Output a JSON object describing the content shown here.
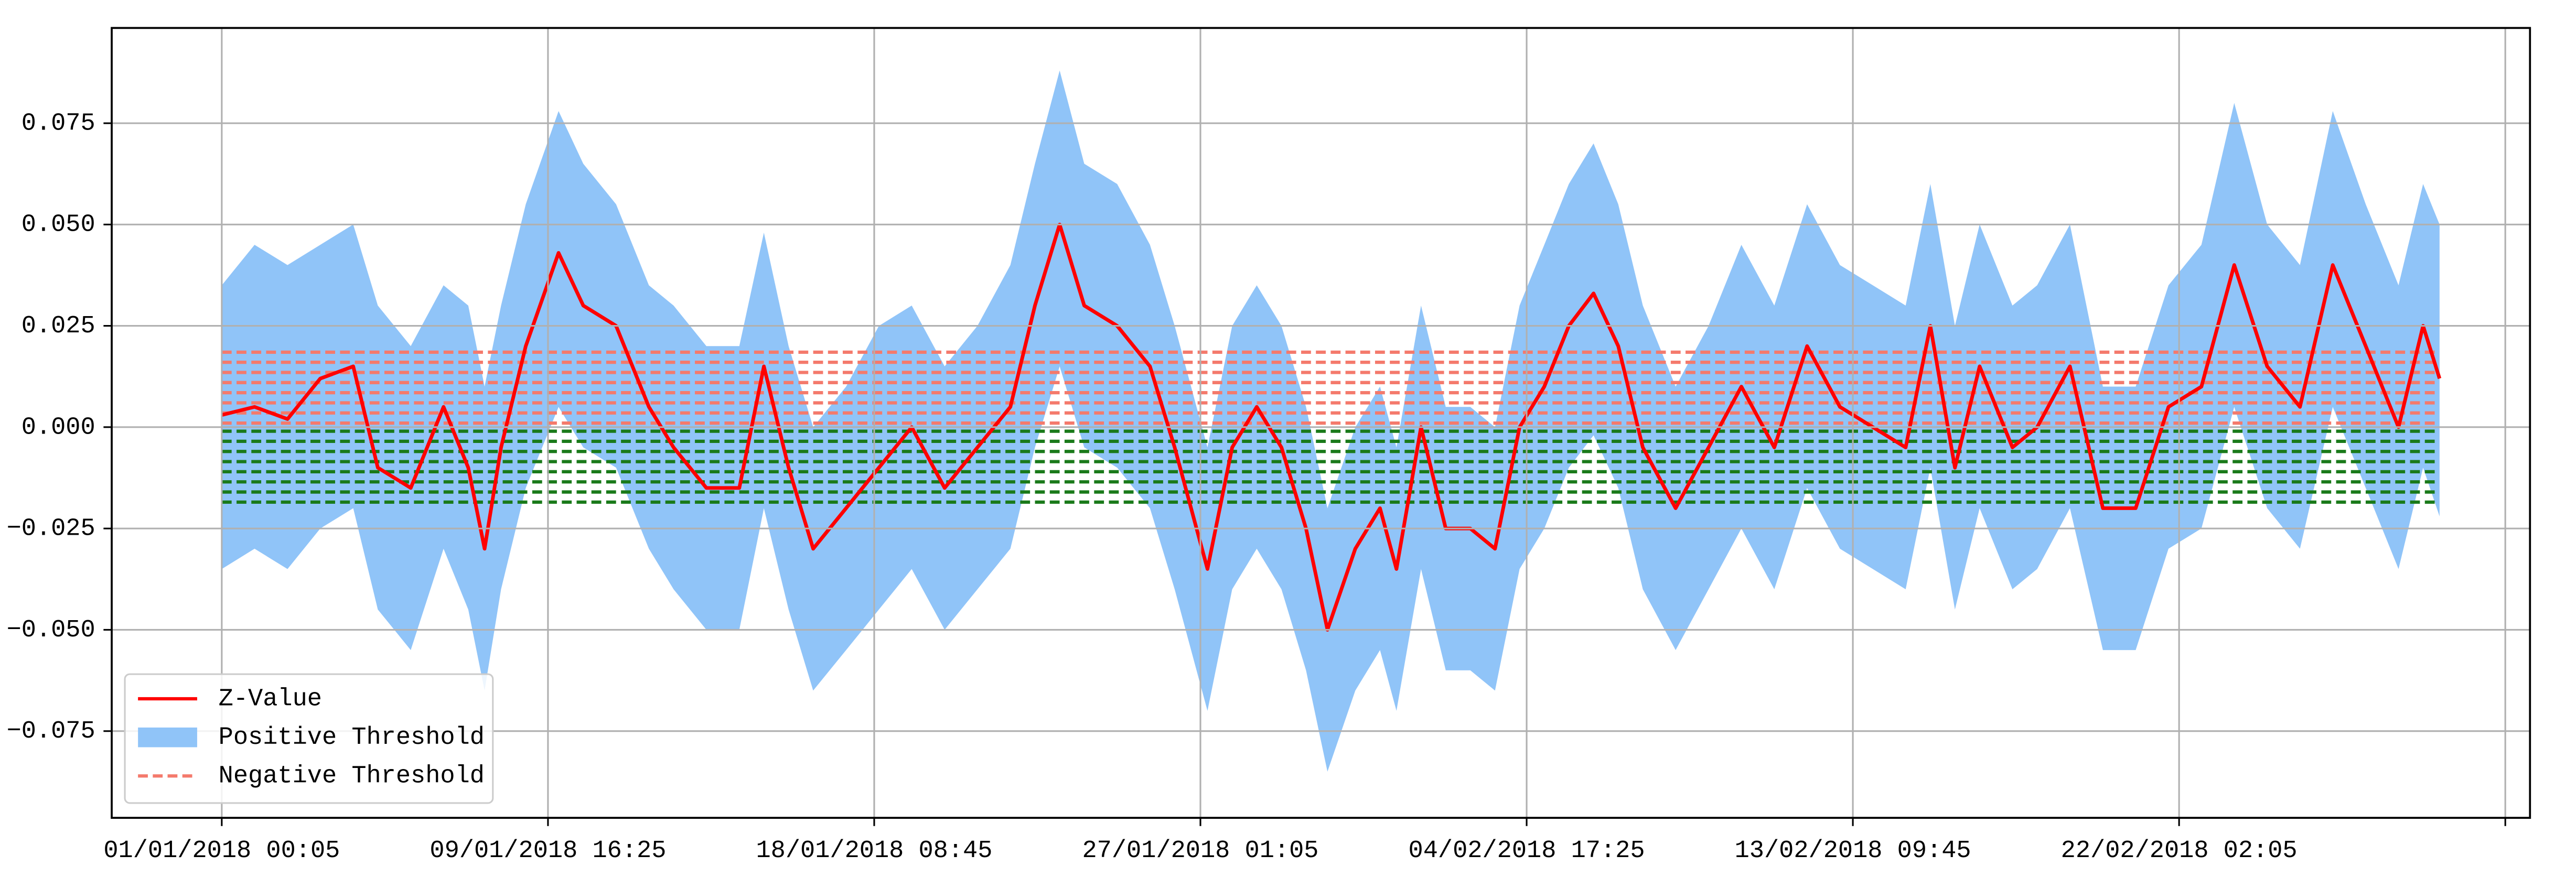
{
  "chart_data": {
    "type": "line",
    "x": [
      0,
      251,
      503,
      754,
      1006,
      1194,
      1446,
      1697,
      1886,
      2011,
      2137,
      2326,
      2577,
      2766,
      3017,
      3268,
      3457,
      3708,
      3960,
      4148,
      4337,
      4525,
      4777,
      5028,
      5279,
      5531,
      5782,
      6034,
      6222,
      6411,
      6599,
      6851,
      7102,
      7291,
      7542,
      7731,
      7919,
      8108,
      8296,
      8460,
      8673,
      8862,
      8988,
      9176,
      9365,
      9553,
      9742,
      9930,
      10119,
      10307,
      10496,
      10685,
      10873,
      11124,
      11376,
      11627,
      11879,
      12130,
      12381,
      12633,
      12884,
      13073,
      13261,
      13450,
      13701,
      13890,
      14141,
      14393,
      14644,
      14895,
      15147,
      15398,
      15650,
      15901,
      16152,
      16404,
      16655,
      16843,
      16969
    ],
    "series": [
      {
        "name": "Z-Value",
        "color": "#ff0000",
        "values": [
          0.003,
          0.005,
          0.002,
          0.012,
          0.015,
          -0.01,
          -0.015,
          0.005,
          -0.01,
          -0.03,
          -0.005,
          0.02,
          0.043,
          0.03,
          0.025,
          0.005,
          -0.005,
          -0.015,
          -0.015,
          0.015,
          -0.01,
          -0.03,
          -0.02,
          -0.01,
          0,
          -0.015,
          -0.005,
          0.005,
          0.03,
          0.05,
          0.03,
          0.025,
          0.015,
          -0.005,
          -0.035,
          -0.005,
          0.005,
          -0.005,
          -0.025,
          -0.05,
          -0.03,
          -0.02,
          -0.035,
          0,
          -0.025,
          -0.025,
          -0.03,
          0,
          0.01,
          0.025,
          0.033,
          0.02,
          -0.005,
          -0.02,
          -0.005,
          0.01,
          -0.005,
          0.02,
          0.005,
          0,
          -0.005,
          0.025,
          -0.01,
          0.015,
          -0.005,
          0,
          0.015,
          -0.02,
          -0.02,
          0.005,
          0.01,
          0.04,
          0.015,
          0.005,
          0.04,
          0.02,
          0,
          0.025,
          0.012
        ]
      }
    ],
    "band": {
      "name": "Positive Threshold",
      "color": "#90c4f8",
      "upper": [
        0.035,
        0.045,
        0.04,
        0.045,
        0.05,
        0.03,
        0.02,
        0.035,
        0.03,
        0.01,
        0.03,
        0.055,
        0.078,
        0.065,
        0.055,
        0.035,
        0.03,
        0.02,
        0.02,
        0.048,
        0.02,
        0.0,
        0.01,
        0.025,
        0.03,
        0.015,
        0.025,
        0.04,
        0.065,
        0.088,
        0.065,
        0.06,
        0.045,
        0.025,
        -0.005,
        0.025,
        0.035,
        0.025,
        0.005,
        -0.02,
        0.0,
        0.01,
        -0.005,
        0.03,
        0.005,
        0.005,
        0.0,
        0.03,
        0.045,
        0.06,
        0.07,
        0.055,
        0.03,
        0.01,
        0.025,
        0.045,
        0.03,
        0.055,
        0.04,
        0.035,
        0.03,
        0.06,
        0.025,
        0.05,
        0.03,
        0.035,
        0.05,
        0.01,
        0.01,
        0.035,
        0.045,
        0.08,
        0.05,
        0.04,
        0.078,
        0.055,
        0.035,
        0.06,
        0.05
      ],
      "lower": [
        -0.035,
        -0.03,
        -0.035,
        -0.025,
        -0.02,
        -0.045,
        -0.055,
        -0.03,
        -0.045,
        -0.065,
        -0.04,
        -0.015,
        0.005,
        -0.005,
        -0.01,
        -0.03,
        -0.04,
        -0.05,
        -0.05,
        -0.02,
        -0.045,
        -0.065,
        -0.055,
        -0.045,
        -0.035,
        -0.05,
        -0.04,
        -0.03,
        -0.005,
        0.015,
        -0.005,
        -0.01,
        -0.02,
        -0.04,
        -0.07,
        -0.04,
        -0.03,
        -0.04,
        -0.06,
        -0.085,
        -0.065,
        -0.055,
        -0.07,
        -0.035,
        -0.06,
        -0.06,
        -0.065,
        -0.035,
        -0.025,
        -0.01,
        -0.002,
        -0.015,
        -0.04,
        -0.055,
        -0.04,
        -0.025,
        -0.04,
        -0.015,
        -0.03,
        -0.035,
        -0.04,
        -0.01,
        -0.045,
        -0.02,
        -0.04,
        -0.035,
        -0.02,
        -0.055,
        -0.055,
        -0.03,
        -0.025,
        0.005,
        -0.02,
        -0.03,
        0.005,
        -0.015,
        -0.035,
        -0.01,
        -0.022
      ]
    },
    "thresholds": [
      {
        "name": "Negative Threshold",
        "color": "#f47a6c",
        "levels": [
          0.0185,
          0.016,
          0.0135,
          0.011,
          0.0085,
          0.006,
          0.0035,
          0.001
        ]
      },
      {
        "color": "#1a7a1a",
        "levels": [
          -0.001,
          -0.0035,
          -0.006,
          -0.0085,
          -0.011,
          -0.0135,
          -0.016,
          -0.0185
        ]
      }
    ],
    "xlim": [
      -842,
      17661
    ],
    "ylim": [
      -0.0964,
      0.0985
    ],
    "xticks": [
      {
        "value": 0,
        "label": "01/01/2018 00:05"
      },
      {
        "value": 2496,
        "label": "09/01/2018 16:25"
      },
      {
        "value": 4992,
        "label": "18/01/2018 08:45"
      },
      {
        "value": 7488,
        "label": "27/01/2018 01:05"
      },
      {
        "value": 9984,
        "label": "04/02/2018 17:25"
      },
      {
        "value": 12480,
        "label": "13/02/2018 09:45"
      },
      {
        "value": 14976,
        "label": "22/02/2018 02:05"
      },
      {
        "value": 17472,
        "label": null
      }
    ],
    "yticks": [
      {
        "value": -0.075,
        "label": "−0.075"
      },
      {
        "value": -0.05,
        "label": "−0.050"
      },
      {
        "value": -0.025,
        "label": "−0.025"
      },
      {
        "value": 0,
        "label": "0.000"
      },
      {
        "value": 0.025,
        "label": "0.025"
      },
      {
        "value": 0.05,
        "label": "0.050"
      },
      {
        "value": 0.075,
        "label": "0.075"
      }
    ],
    "grid": true,
    "legend": "lower left"
  }
}
